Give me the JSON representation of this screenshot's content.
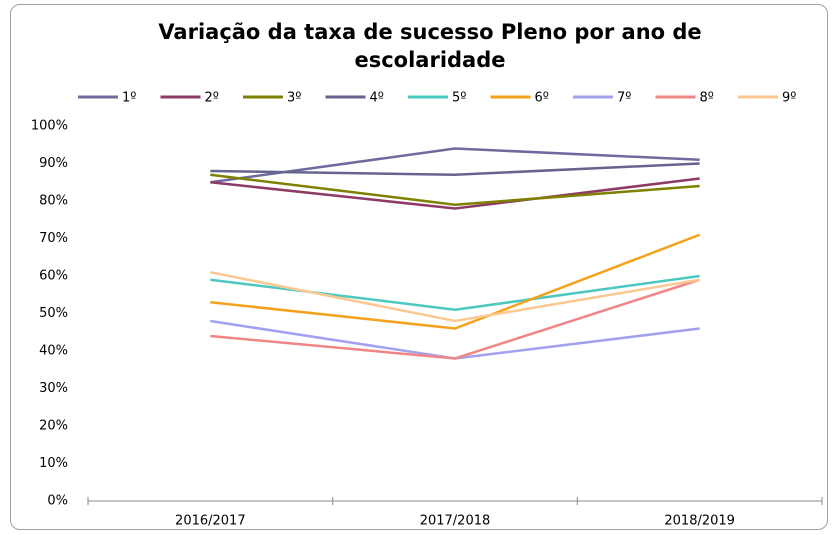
{
  "chart_data": {
    "type": "line",
    "title": "Variação da taxa de sucesso Pleno por ano de escolaridade",
    "categories": [
      "2016/2017",
      "2017/2018",
      "2018/2019"
    ],
    "series": [
      {
        "name": "1º",
        "color": "#6f6a9e",
        "values": [
          85,
          94,
          91
        ]
      },
      {
        "name": "2º",
        "color": "#8e3a66",
        "values": [
          85,
          78,
          86
        ]
      },
      {
        "name": "3º",
        "color": "#7f7f00",
        "values": [
          87,
          79,
          84
        ]
      },
      {
        "name": "4º",
        "color": "#65648f",
        "values": [
          88,
          87,
          90
        ]
      },
      {
        "name": "5º",
        "color": "#4cc8c0",
        "values": [
          59,
          51,
          60
        ]
      },
      {
        "name": "6º",
        "color": "#f4a21c",
        "values": [
          53,
          46,
          71
        ]
      },
      {
        "name": "7º",
        "color": "#a3a0f0",
        "values": [
          48,
          38,
          46
        ]
      },
      {
        "name": "8º",
        "color": "#f08585",
        "values": [
          44,
          38,
          59
        ]
      },
      {
        "name": "9º",
        "color": "#fbc891",
        "values": [
          61,
          48,
          59
        ]
      }
    ],
    "ylim": [
      0,
      100
    ],
    "yticks": [
      {
        "value": 0,
        "label": "0%"
      },
      {
        "value": 10,
        "label": "10%"
      },
      {
        "value": 20,
        "label": "20%"
      },
      {
        "value": 30,
        "label": "30%"
      },
      {
        "value": 40,
        "label": "40%"
      },
      {
        "value": 50,
        "label": "50%"
      },
      {
        "value": 60,
        "label": "60%"
      },
      {
        "value": 70,
        "label": "70%"
      },
      {
        "value": 80,
        "label": "80%"
      },
      {
        "value": 90,
        "label": "90%"
      },
      {
        "value": 100,
        "label": "100%"
      }
    ],
    "legend": "top",
    "grid": false
  }
}
